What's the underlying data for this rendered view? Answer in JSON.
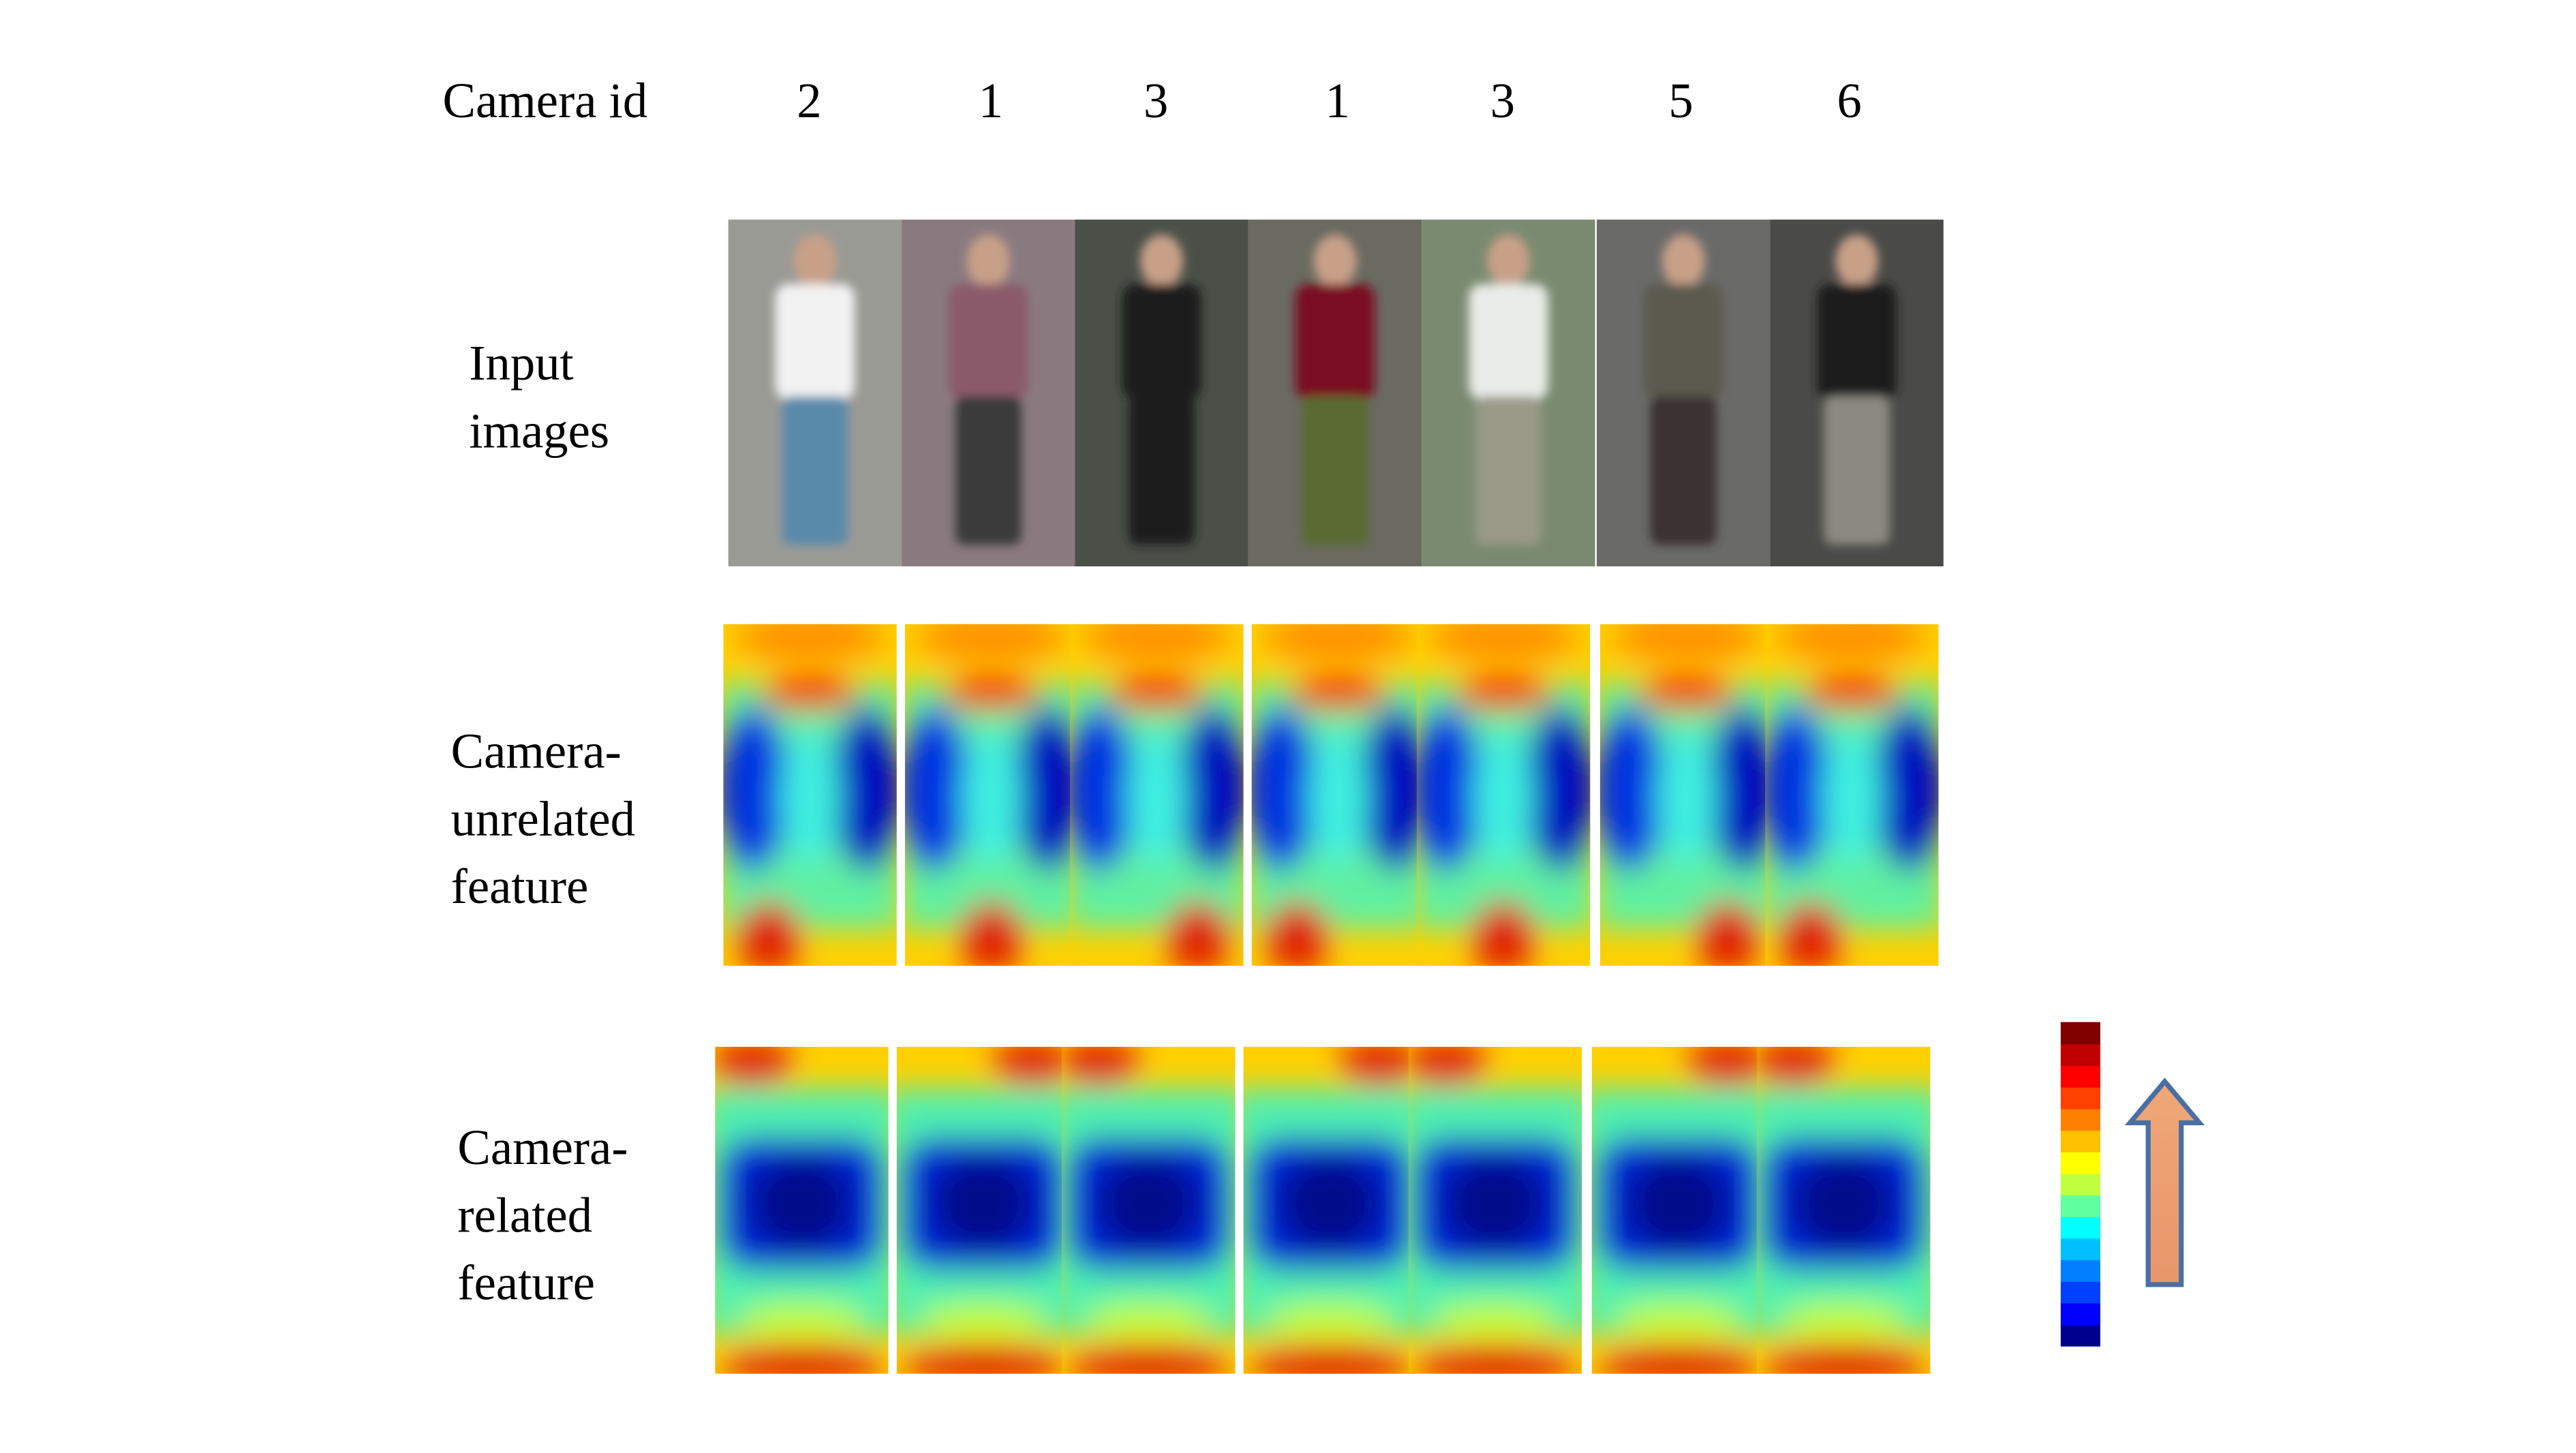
{
  "header": {
    "label": "Camera id",
    "camera_ids": [
      2,
      1,
      3,
      1,
      3,
      5,
      6
    ]
  },
  "rows": [
    {
      "lines": [
        "Input",
        "images"
      ]
    },
    {
      "lines": [
        "Camera-",
        "unrelated",
        "feature"
      ]
    },
    {
      "lines": [
        "Camera-",
        "related",
        "feature"
      ]
    }
  ]
}
